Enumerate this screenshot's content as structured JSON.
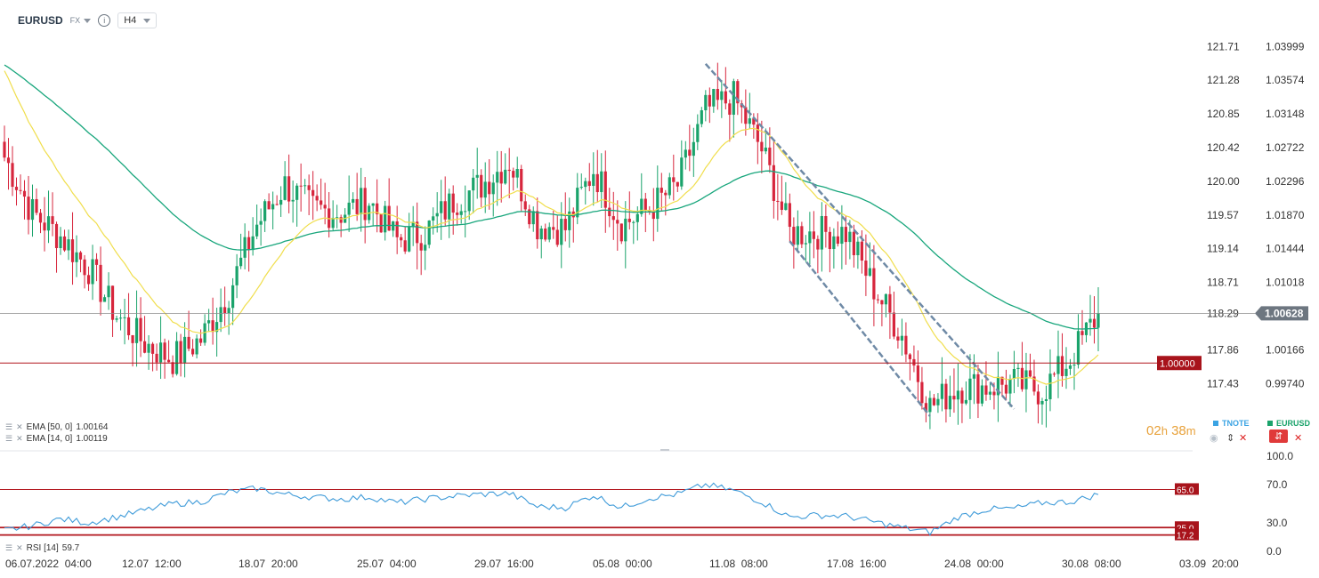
{
  "header": {
    "symbol": "EURUSD",
    "market": "FX",
    "info_icon": "info-icon",
    "timeframe": "H4"
  },
  "indicators": {
    "ema50": {
      "label": "EMA [50, 0]",
      "value": "1.00164",
      "color": "#18a67c"
    },
    "ema14": {
      "label": "EMA [14, 0]",
      "value": "1.00119",
      "color": "#f0de4c"
    },
    "rsi": {
      "label": "RSI [14]",
      "value": "59.7",
      "color": "#3f9bd9"
    }
  },
  "legend": {
    "tnote": "TNOTE",
    "tnote_color": "#3aa3e3",
    "eurusd": "EURUSD",
    "eurusd_color": "#1aa36b"
  },
  "timer": {
    "hours": "02",
    "h": "h",
    "minutes": "38",
    "m": "m"
  },
  "price_badges": {
    "current": "1.00628",
    "level": "1.00000"
  },
  "rsi_badges": [
    "65.0",
    "25.0",
    "17.2"
  ],
  "chart_data": [
    {
      "type": "candlestick",
      "symbol": "EURUSD",
      "interval": "H4",
      "x_ticks": [
        "06.07.2022  04:00",
        "12.07  12:00",
        "18.07  20:00",
        "25.07  04:00",
        "29.07  16:00",
        "05.08  00:00",
        "11.08  08:00",
        "17.08  16:00",
        "24.08  00:00",
        "30.08  08:00",
        "03.09  20:00"
      ],
      "y_ticks_right": [
        "1.03999",
        "1.03574",
        "1.03148",
        "1.02722",
        "1.02296",
        "1.01870",
        "1.01444",
        "1.01018",
        "1.00166",
        "0.99740"
      ],
      "y_ticks_left": [
        "121.71",
        "121.28",
        "120.85",
        "120.42",
        "120.00",
        "119.57",
        "119.14",
        "118.71",
        "118.29",
        "117.86",
        "117.43"
      ],
      "ylim": [
        0.9925,
        1.0425
      ],
      "current_price": 1.00628,
      "horizontal_level": 1.0,
      "trend_channel_upper": [
        [
          1.0378,
          "10.08"
        ],
        [
          0.9942,
          "25.08"
        ]
      ],
      "trend_channel_lower": [
        [
          1.0154,
          "15.08"
        ],
        [
          0.9933,
          "22.08"
        ]
      ],
      "anchors": [
        [
          "06.07",
          1.026
        ],
        [
          "07.07",
          1.019
        ],
        [
          "08.07",
          1.016
        ],
        [
          "11.07",
          1.012
        ],
        [
          "12.07",
          1.006
        ],
        [
          "13.07",
          1.0025
        ],
        [
          "14.07",
          1.0005
        ],
        [
          "15.07",
          1.003
        ],
        [
          "18.07",
          1.009
        ],
        [
          "19.07",
          1.0175
        ],
        [
          "20.07",
          1.0225
        ],
        [
          "21.07",
          1.0195
        ],
        [
          "22.07",
          1.019
        ],
        [
          "25.07",
          1.0205
        ],
        [
          "26.07",
          1.0155
        ],
        [
          "27.07",
          1.0165
        ],
        [
          "28.07",
          1.0205
        ],
        [
          "29.07",
          1.0225
        ],
        [
          "01.08",
          1.0255
        ],
        [
          "02.08",
          1.0175
        ],
        [
          "03.08",
          1.017
        ],
        [
          "04.08",
          1.0245
        ],
        [
          "05.08",
          1.0175
        ],
        [
          "08.08",
          1.0195
        ],
        [
          "09.08",
          1.0225
        ],
        [
          "10.08",
          1.032
        ],
        [
          "11.08",
          1.0335
        ],
        [
          "12.08",
          1.027
        ],
        [
          "15.08",
          1.0165
        ],
        [
          "16.08",
          1.0165
        ],
        [
          "17.08",
          1.0165
        ],
        [
          "18.08",
          1.0095
        ],
        [
          "19.08",
          1.0035
        ],
        [
          "22.08",
          0.9945
        ],
        [
          "23.08",
          0.997
        ],
        [
          "24.08",
          0.997
        ],
        [
          "25.08",
          0.9975
        ],
        [
          "26.08",
          0.9965
        ],
        [
          "29.08",
          1.0005
        ],
        [
          "30.08",
          1.0063
        ]
      ]
    },
    {
      "type": "line",
      "name": "RSI [14]",
      "ylim": [
        0,
        100
      ],
      "y_ticks": [
        "100.0",
        "70.0",
        "30.0",
        "0.0"
      ],
      "levels": [
        65.0,
        25.0,
        17.2
      ],
      "anchors": [
        [
          "06.07",
          22
        ],
        [
          "07.07",
          27
        ],
        [
          "08.07",
          34
        ],
        [
          "11.07",
          30
        ],
        [
          "12.07",
          36
        ],
        [
          "13.07",
          43
        ],
        [
          "14.07",
          50
        ],
        [
          "15.07",
          52
        ],
        [
          "18.07",
          62
        ],
        [
          "19.07",
          66
        ],
        [
          "20.07",
          60
        ],
        [
          "21.07",
          57
        ],
        [
          "22.07",
          55
        ],
        [
          "25.07",
          57
        ],
        [
          "26.07",
          51
        ],
        [
          "27.07",
          55
        ],
        [
          "28.07",
          58
        ],
        [
          "29.07",
          60
        ],
        [
          "01.08",
          61
        ],
        [
          "02.08",
          47
        ],
        [
          "03.08",
          46
        ],
        [
          "04.08",
          59
        ],
        [
          "05.08",
          46
        ],
        [
          "08.08",
          56
        ],
        [
          "09.08",
          60
        ],
        [
          "10.08",
          70
        ],
        [
          "11.08",
          64
        ],
        [
          "12.08",
          52
        ],
        [
          "15.08",
          36
        ],
        [
          "16.08",
          38
        ],
        [
          "17.08",
          37
        ],
        [
          "18.08",
          31
        ],
        [
          "19.08",
          25
        ],
        [
          "22.08",
          20
        ],
        [
          "23.08",
          36
        ],
        [
          "24.08",
          44
        ],
        [
          "25.08",
          45
        ],
        [
          "26.08",
          51
        ],
        [
          "29.08",
          52
        ],
        [
          "30.08",
          59.7
        ]
      ]
    }
  ]
}
